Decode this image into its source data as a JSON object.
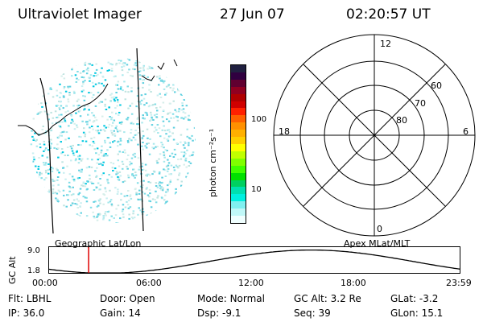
{
  "header": {
    "title": "Ultraviolet Imager",
    "date": "27 Jun 07",
    "time": "02:20:57 UT"
  },
  "colorbar": {
    "unit_label": "photon cm⁻²s⁻¹",
    "ticks": [
      "100",
      "10"
    ],
    "colors_top_to_bottom": [
      "#202040",
      "#300040",
      "#600030",
      "#900020",
      "#b00000",
      "#d00000",
      "#ff2000",
      "#ff6000",
      "#ff9000",
      "#ffb000",
      "#ffd000",
      "#ffff00",
      "#c0ff00",
      "#80ff00",
      "#40ff00",
      "#00e000",
      "#00d060",
      "#00e0b0",
      "#00f0e0",
      "#80f0f0",
      "#c0f8f8",
      "#f0ffff"
    ]
  },
  "polar_grid": {
    "lat_labels": [
      "60",
      "70",
      "80"
    ],
    "mlt_labels": {
      "top": "12",
      "left": "18",
      "right": "6",
      "bottom": "0"
    }
  },
  "panel_labels": {
    "left": "Geographic Lat/Lon",
    "right": "Apex MLat/MLT"
  },
  "altitude_plot": {
    "ylabel": "GC Alt",
    "y_ticks": [
      "9.0",
      "1.8"
    ],
    "x_ticks": [
      "00:00",
      "06:00",
      "12:00",
      "18:00",
      "23:59"
    ],
    "current_time_marker": "02:20:57"
  },
  "status": {
    "row1": [
      {
        "label": "Flt:",
        "value": "LBHL"
      },
      {
        "label": "Door:",
        "value": "Open"
      },
      {
        "label": "Mode:",
        "value": "Normal"
      },
      {
        "label": "GC Alt:",
        "value": "3.2 Re"
      },
      {
        "label": "GLat:",
        "value": "-3.2"
      }
    ],
    "row2": [
      {
        "label": "IP:",
        "value": "36.0"
      },
      {
        "label": "Gain:",
        "value": "14"
      },
      {
        "label": "Dsp:",
        "value": "-9.1"
      },
      {
        "label": "Seq:",
        "value": "39"
      },
      {
        "label": "GLon:",
        "value": "15.1"
      }
    ]
  }
}
